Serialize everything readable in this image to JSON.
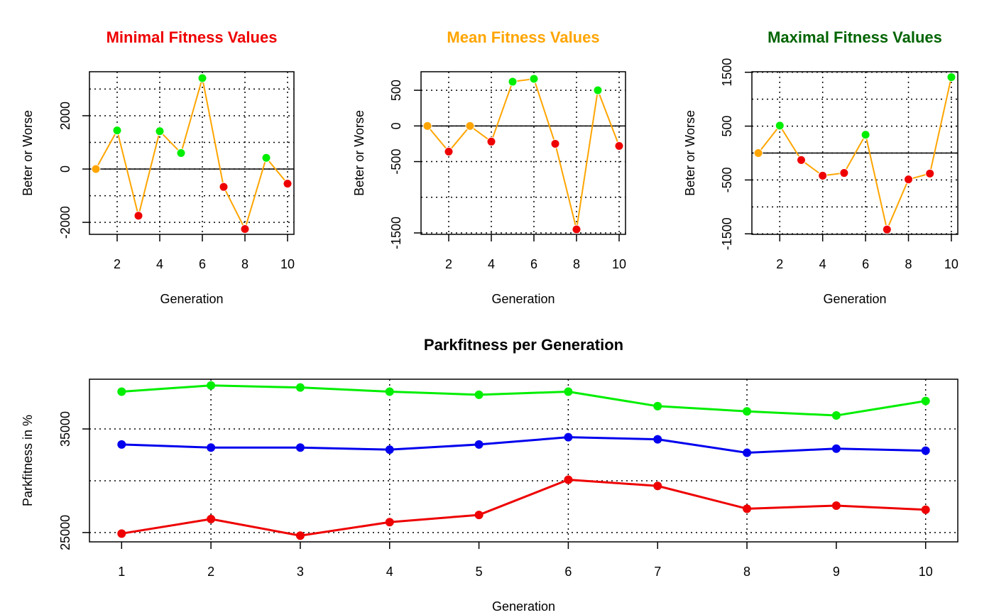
{
  "colors": {
    "better": "#00ee00",
    "worse": "#ee0000",
    "neutral": "#ffa500",
    "connector": "#ffa500",
    "title_min": "#ee0000",
    "title_mean": "#ffa500",
    "title_max": "#006400",
    "series_max": "#00ee00",
    "series_mean": "#0000ee",
    "series_min": "#ee0000"
  },
  "chart_data": [
    {
      "type": "line",
      "title": "Minimal Fitness Values",
      "xlabel": "Generation",
      "ylabel": "Beter or Worse",
      "x": [
        1,
        2,
        3,
        4,
        5,
        6,
        7,
        8,
        9,
        10
      ],
      "values": [
        0,
        1450,
        -1750,
        1420,
        600,
        3410,
        -670,
        -2250,
        420,
        -550
      ],
      "xlim": [
        0.7,
        10.3
      ],
      "ylim": [
        -2450,
        3650
      ],
      "xticks": [
        2,
        4,
        6,
        8,
        10
      ],
      "yticks": [
        -2000,
        0,
        2000
      ],
      "grid_x": [
        2,
        4,
        6,
        8,
        10
      ],
      "grid_y": [
        -2000,
        -1000,
        0,
        1000,
        2000,
        3000
      ],
      "reference_line": 0,
      "grid": true
    },
    {
      "type": "line",
      "title": "Mean Fitness Values",
      "xlabel": "Generation",
      "ylabel": "Beter or Worse",
      "x": [
        1,
        2,
        3,
        4,
        5,
        6,
        7,
        8,
        9,
        10
      ],
      "values": [
        0,
        -360,
        0,
        -220,
        620,
        660,
        -250,
        -1450,
        500,
        -280
      ],
      "xlim": [
        0.7,
        10.3
      ],
      "ylim": [
        -1520,
        760
      ],
      "xticks": [
        2,
        4,
        6,
        8,
        10
      ],
      "yticks": [
        -1500,
        -500,
        0,
        500
      ],
      "grid_x": [
        2,
        4,
        6,
        8,
        10
      ],
      "grid_y": [
        -1500,
        -1000,
        -500,
        0,
        500
      ],
      "reference_line": 0,
      "grid": true
    },
    {
      "type": "line",
      "title": "Maximal Fitness Values",
      "xlabel": "Generation",
      "ylabel": "Beter or Worse",
      "x": [
        1,
        2,
        3,
        4,
        5,
        6,
        7,
        8,
        9,
        10
      ],
      "values": [
        0,
        510,
        -130,
        -420,
        -370,
        340,
        -1420,
        -490,
        -380,
        1410
      ],
      "xlim": [
        0.7,
        10.3
      ],
      "ylim": [
        -1510,
        1510
      ],
      "xticks": [
        2,
        4,
        6,
        8,
        10
      ],
      "yticks": [
        -1500,
        -500,
        500,
        1500
      ],
      "grid_x": [
        2,
        4,
        6,
        8,
        10
      ],
      "grid_y": [
        -1500,
        -1000,
        -500,
        0,
        500,
        1000,
        1500
      ],
      "reference_line": 0,
      "grid": true
    },
    {
      "type": "line",
      "title": "Parkfitness per Generation",
      "xlabel": "Generation",
      "ylabel": "Parkfitness in %",
      "x": [
        1,
        2,
        3,
        4,
        5,
        6,
        7,
        8,
        9,
        10
      ],
      "xlim": [
        0.64,
        10.36
      ],
      "ylim": [
        24100,
        39800
      ],
      "xticks": [
        1,
        2,
        3,
        4,
        5,
        6,
        7,
        8,
        9,
        10
      ],
      "yticks": [
        25000,
        35000
      ],
      "grid_x": [
        2,
        4,
        6,
        8,
        10
      ],
      "grid_y": [
        25000,
        30000,
        35000
      ],
      "grid": true,
      "series": [
        {
          "values": [
            38600,
            39200,
            39000,
            38600,
            38300,
            38600,
            37200,
            36700,
            36300,
            37700
          ]
        },
        {
          "values": [
            33500,
            33200,
            33200,
            33000,
            33500,
            34200,
            34000,
            32700,
            33100,
            32900
          ]
        },
        {
          "values": [
            24900,
            26300,
            24700,
            26000,
            26700,
            30100,
            29500,
            27300,
            27600,
            27200
          ]
        }
      ]
    }
  ]
}
